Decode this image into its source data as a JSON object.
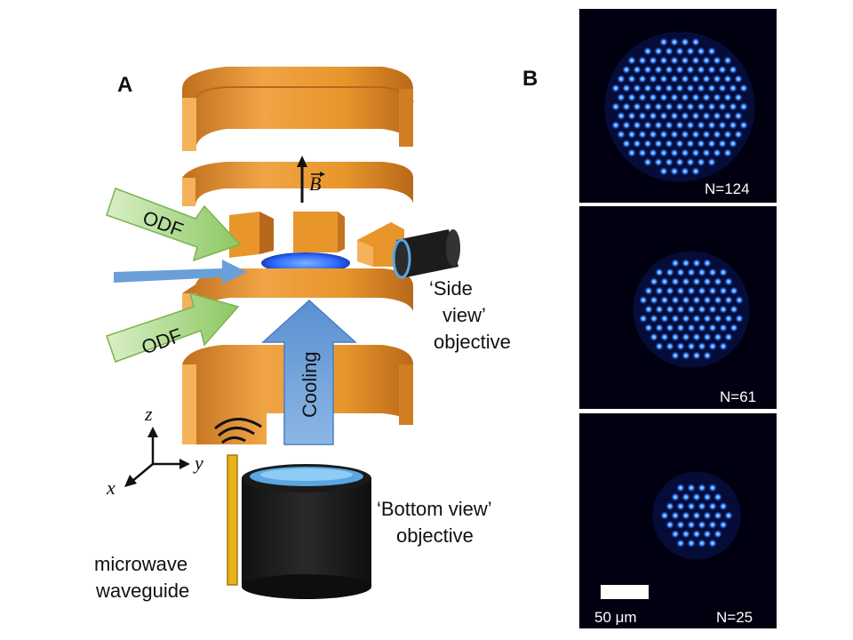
{
  "panels": {
    "a_letter": "A",
    "b_letter": "B"
  },
  "labels": {
    "odf_top": "ODF",
    "odf_bottom": "ODF",
    "cooling": "Cooling",
    "b_field": "B",
    "side_view_line1": "‘Side",
    "side_view_line2": "view’",
    "side_view_line3": "objective",
    "bottom_view_line1": "‘Bottom view’",
    "bottom_view_line2": "objective",
    "microwave_line1": "microwave",
    "microwave_line2": "waveguide"
  },
  "axes": {
    "z": "z",
    "y": "y",
    "x": "x"
  },
  "crystal_images": [
    {
      "count_label": "N=124"
    },
    {
      "count_label": "N=61"
    },
    {
      "count_label": "N=25"
    }
  ],
  "scale_bar": {
    "label": "50 μm"
  },
  "colors": {
    "electrode": "#e8962b",
    "electrode_dark": "#b8681a",
    "electrode_light": "#f4b25a",
    "odf_arrow": "#9fd07a",
    "cooling_arrow": "#6a9fd8",
    "ion_blue": "#2f6cff",
    "image_bg": "#000010",
    "objective_body": "#1c1c1c",
    "objective_lens": "#5aa6e0",
    "waveguide": "#e8b21a"
  }
}
